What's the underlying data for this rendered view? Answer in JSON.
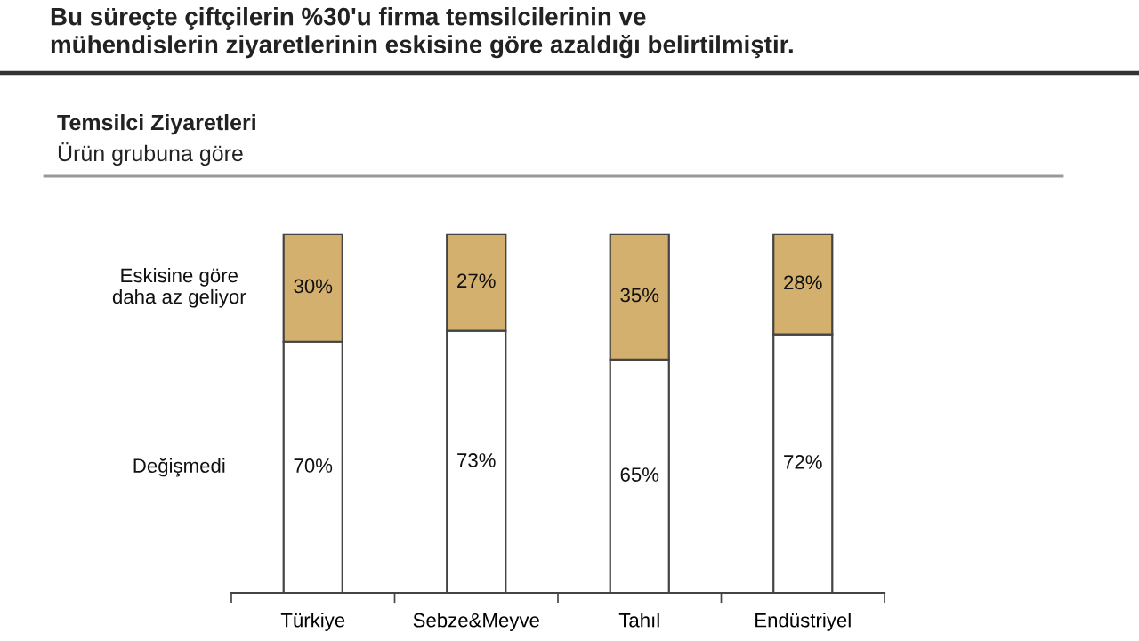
{
  "chart_data": {
    "type": "bar",
    "title": "Bu süreçte çiftçilerin %30'u firma temsilcilerinin ve\nmühendislerin ziyaretlerinin eskisine göre azaldığı belirtilmiştir.",
    "subtitle": "Temsilci Ziyaretleri",
    "annotations": [
      "Ürün grubuna göre"
    ],
    "categories": [
      "Türkiye",
      "Sebze&Meyve",
      "Tahıl",
      "Endüstriyel"
    ],
    "stacked": true,
    "ylim": [
      0,
      100
    ],
    "tick_labels": "x",
    "legend": false,
    "series": [
      {
        "name": "Değişmedi",
        "color": "#ffffff",
        "values": [
          70,
          73,
          65,
          72
        ],
        "value_labels": [
          "70%",
          "73%",
          "65%",
          "72%"
        ]
      },
      {
        "name": "Eskisine göre\ndaha az geliyor",
        "color": "#d4b06e",
        "values": [
          30,
          27,
          35,
          28
        ],
        "value_labels": [
          "30%",
          "27%",
          "35%",
          "28%"
        ]
      }
    ]
  }
}
